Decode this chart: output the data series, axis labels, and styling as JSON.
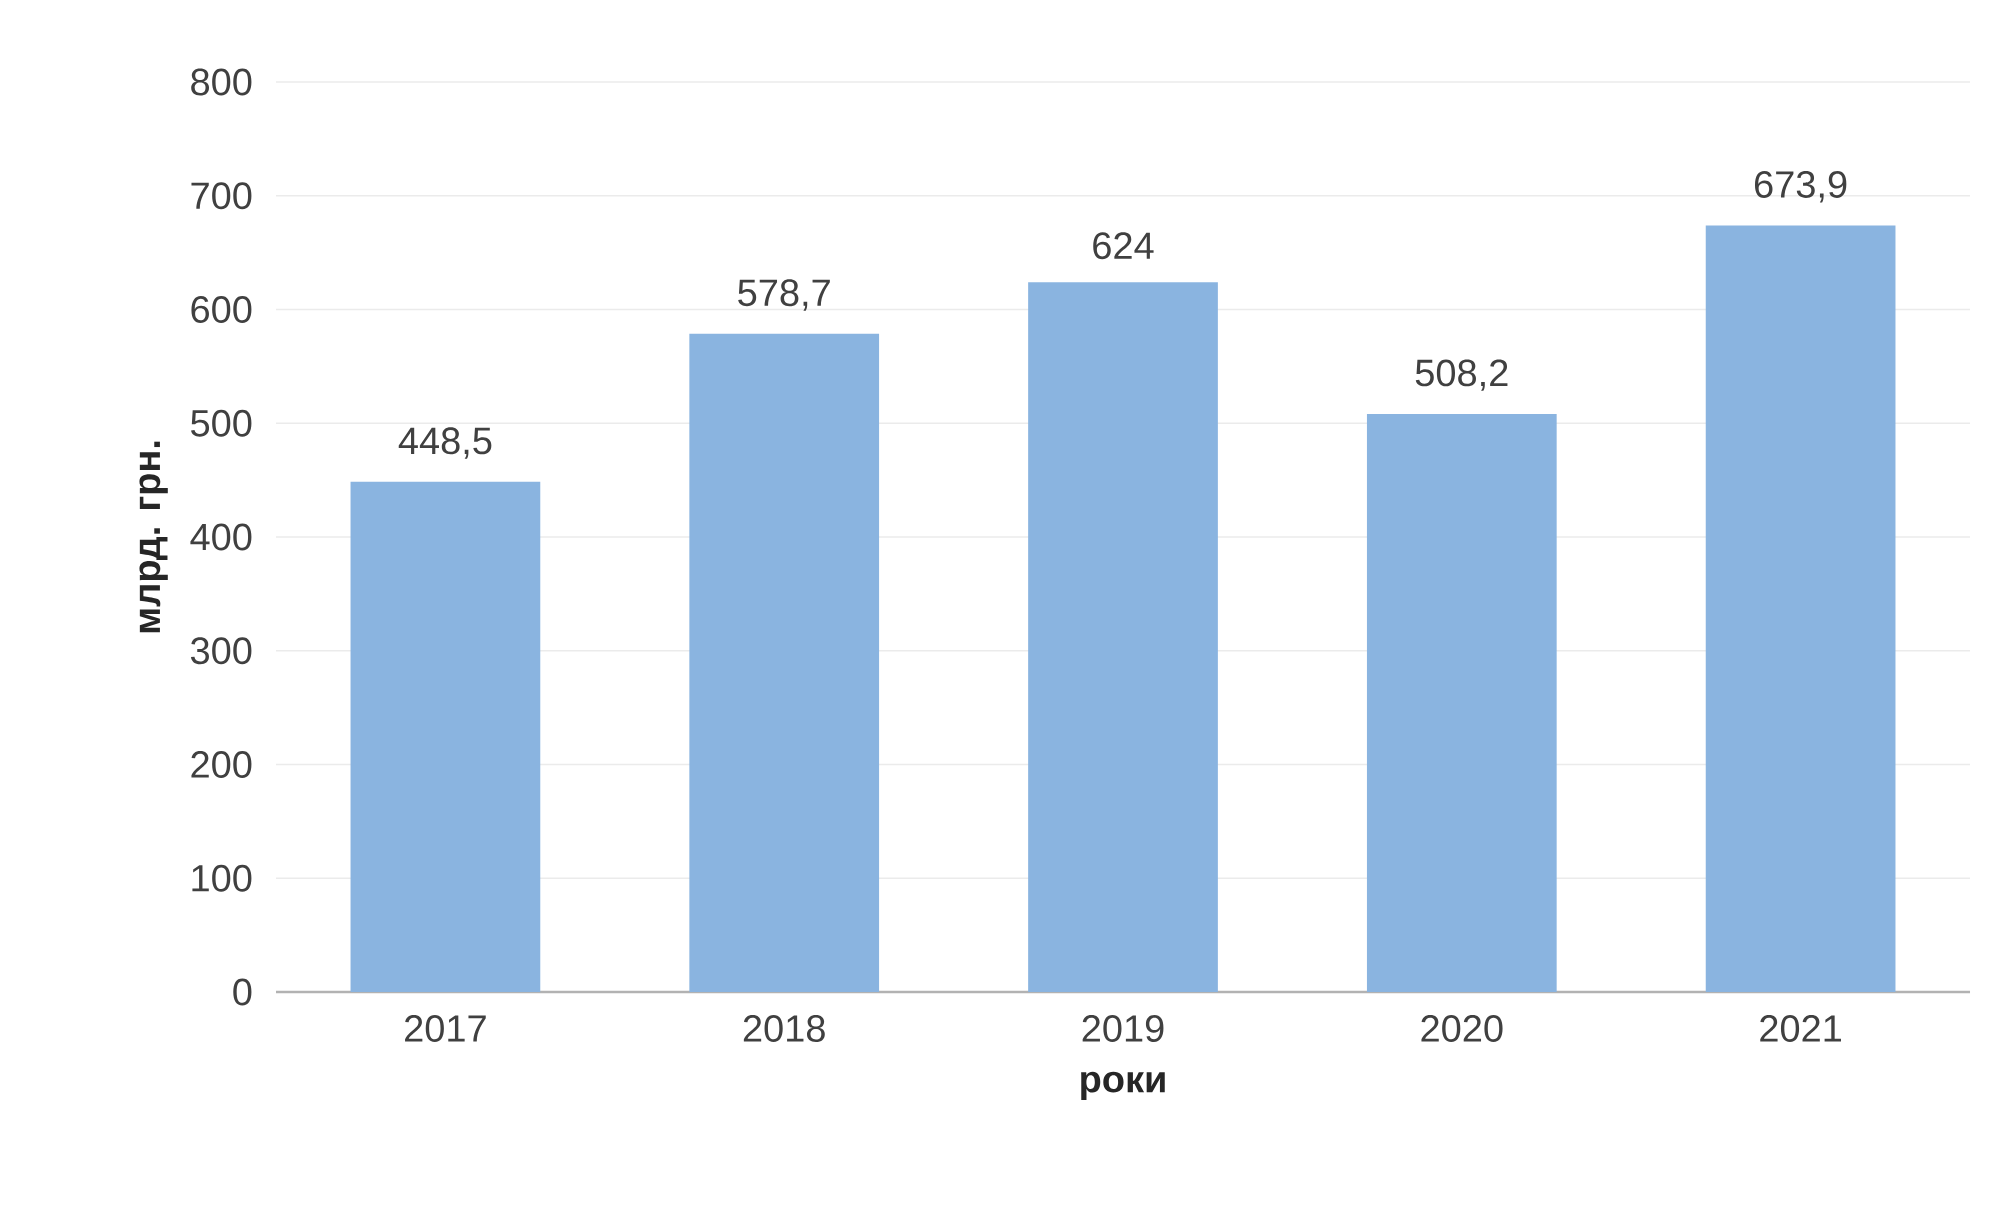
{
  "chart_data": {
    "type": "bar",
    "xlabel": "роки",
    "ylabel": "млрд. грн.",
    "categories": [
      "2017",
      "2018",
      "2019",
      "2020",
      "2021"
    ],
    "values": [
      448.5,
      578.7,
      624,
      508.2,
      673.9
    ],
    "value_labels": [
      "448,5",
      "578,7",
      "624",
      "508,2",
      "673,9"
    ],
    "color": "#8ab4e0",
    "ylim": [
      0,
      800
    ],
    "yticks": [
      0,
      100,
      200,
      300,
      400,
      500,
      600,
      700,
      800
    ],
    "grid": "y"
  }
}
